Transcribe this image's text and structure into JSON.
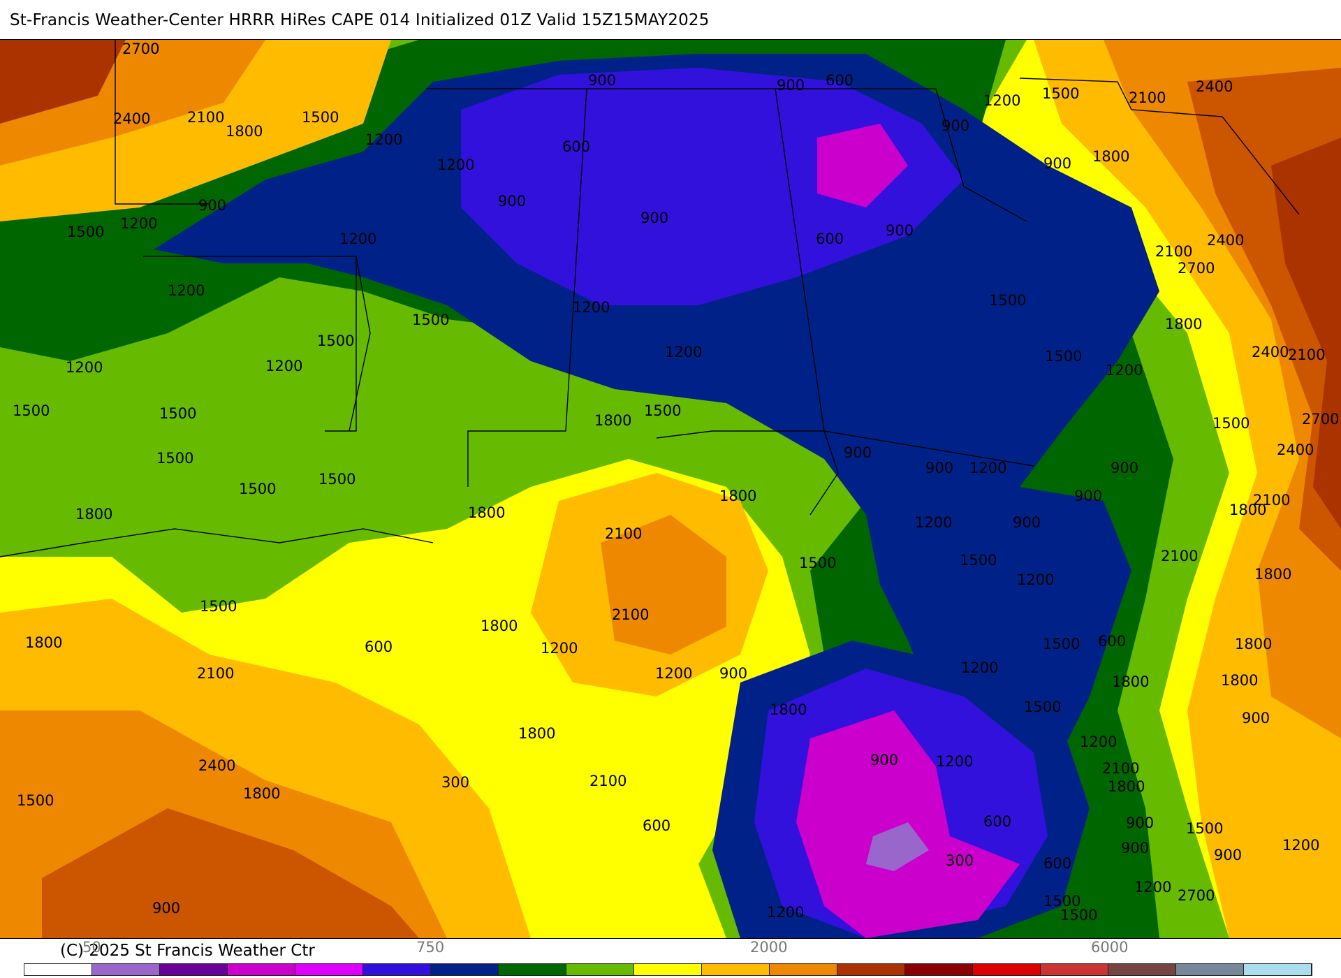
{
  "title": "St-Francis Weather-Center HRRR HiRes CAPE  014 Initialized  01Z Valid 15Z15MAY2025",
  "copyright": "(C) 2025 St Francis Weather Ctr",
  "map": {
    "field": "CAPE",
    "model": "HRRR HiRes",
    "contour_labels": [
      "2700",
      "2400",
      "2100",
      "1800",
      "1500",
      "1200",
      "900",
      "600",
      "300"
    ]
  },
  "colorbar": {
    "tick_labels": [
      "50",
      "750",
      "2000",
      "6000"
    ],
    "colors": [
      "#ffffff",
      "#9966cc",
      "#660099",
      "#cc00cc",
      "#dd00ff",
      "#3311dd",
      "#002288",
      "#006600",
      "#66bb00",
      "#ffff00",
      "#ffbb00",
      "#ee8800",
      "#aa3300",
      "#880000",
      "#dd0000",
      "#cc3333",
      "#774444",
      "#778899",
      "#aaddee"
    ]
  },
  "region_labels": [
    {
      "text": "2700"
    },
    {
      "text": "2400"
    },
    {
      "text": "2100"
    },
    {
      "text": "1800"
    },
    {
      "text": "1500"
    },
    {
      "text": "1200"
    },
    {
      "text": "1200"
    },
    {
      "text": "900"
    },
    {
      "text": "900"
    },
    {
      "text": "600"
    },
    {
      "text": "900"
    },
    {
      "text": "600"
    },
    {
      "text": "1200"
    },
    {
      "text": "1500"
    },
    {
      "text": "2100"
    },
    {
      "text": "2400"
    },
    {
      "text": "1500"
    },
    {
      "text": "1200"
    },
    {
      "text": "900"
    },
    {
      "text": "900"
    },
    {
      "text": "900"
    },
    {
      "text": "600"
    },
    {
      "text": "900"
    },
    {
      "text": "1800"
    },
    {
      "text": "900"
    },
    {
      "text": "2100"
    },
    {
      "text": "2400"
    },
    {
      "text": "1200"
    },
    {
      "text": "2700"
    },
    {
      "text": "1500"
    },
    {
      "text": "1200"
    },
    {
      "text": "1500"
    },
    {
      "text": "1200"
    },
    {
      "text": "1200"
    },
    {
      "text": "1200"
    },
    {
      "text": "1800"
    },
    {
      "text": "1500"
    },
    {
      "text": "1500"
    },
    {
      "text": "1200"
    },
    {
      "text": "1500"
    },
    {
      "text": "1500"
    },
    {
      "text": "1500"
    },
    {
      "text": "1800"
    },
    {
      "text": "1500"
    },
    {
      "text": "1200"
    },
    {
      "text": "2400"
    },
    {
      "text": "2100"
    },
    {
      "text": "2700"
    },
    {
      "text": "1500"
    },
    {
      "text": "2400"
    },
    {
      "text": "900"
    },
    {
      "text": "900"
    },
    {
      "text": "1200"
    },
    {
      "text": "900"
    },
    {
      "text": "1800"
    },
    {
      "text": "1500"
    },
    {
      "text": "1500"
    },
    {
      "text": "1800"
    },
    {
      "text": "1800"
    },
    {
      "text": "2100"
    },
    {
      "text": "1200"
    },
    {
      "text": "900"
    },
    {
      "text": "900"
    },
    {
      "text": "2100"
    },
    {
      "text": "1800"
    },
    {
      "text": "1500"
    },
    {
      "text": "1500"
    },
    {
      "text": "1200"
    },
    {
      "text": "2100"
    },
    {
      "text": "1800"
    },
    {
      "text": "2100"
    },
    {
      "text": "1500"
    },
    {
      "text": "1800"
    },
    {
      "text": "1800"
    },
    {
      "text": "1200"
    },
    {
      "text": "600"
    },
    {
      "text": "1200"
    },
    {
      "text": "600"
    },
    {
      "text": "1500"
    },
    {
      "text": "1800"
    },
    {
      "text": "1800"
    },
    {
      "text": "2100"
    },
    {
      "text": "1200"
    },
    {
      "text": "900"
    },
    {
      "text": "1800"
    },
    {
      "text": "1500"
    },
    {
      "text": "1800"
    },
    {
      "text": "900"
    },
    {
      "text": "1200"
    },
    {
      "text": "2100"
    },
    {
      "text": "2400"
    },
    {
      "text": "1800"
    },
    {
      "text": "1800"
    },
    {
      "text": "2100"
    },
    {
      "text": "300"
    },
    {
      "text": "900"
    },
    {
      "text": "1200"
    },
    {
      "text": "1800"
    },
    {
      "text": "1500"
    },
    {
      "text": "600"
    },
    {
      "text": "600"
    },
    {
      "text": "900"
    },
    {
      "text": "900"
    },
    {
      "text": "1500"
    },
    {
      "text": "300"
    },
    {
      "text": "600"
    },
    {
      "text": "900"
    },
    {
      "text": "1500"
    },
    {
      "text": "1200"
    },
    {
      "text": "2700"
    },
    {
      "text": "900"
    },
    {
      "text": "1200"
    },
    {
      "text": "1200"
    },
    {
      "text": "1500"
    }
  ]
}
